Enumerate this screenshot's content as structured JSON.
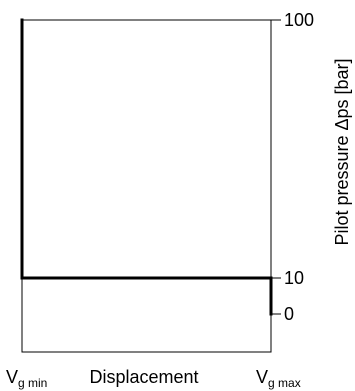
{
  "chart_data": {
    "type": "line",
    "xlabel": "Displacement",
    "ylabel": "Pilot pressure Δps [bar]",
    "x_ticks": [
      {
        "main": "V",
        "sub": "g min",
        "pos": "min"
      },
      {
        "main": "V",
        "sub": "g max",
        "pos": "max"
      }
    ],
    "y_ticks": [
      100,
      10,
      0
    ],
    "ylim": [
      0,
      100
    ],
    "y_scale": "piecewise",
    "grid": false,
    "series": [
      {
        "points": [
          {
            "x": "min",
            "y": 100
          },
          {
            "x": "min",
            "y": 10
          },
          {
            "x": "max",
            "y": 10
          },
          {
            "x": "max",
            "y": 0
          }
        ]
      }
    ]
  }
}
